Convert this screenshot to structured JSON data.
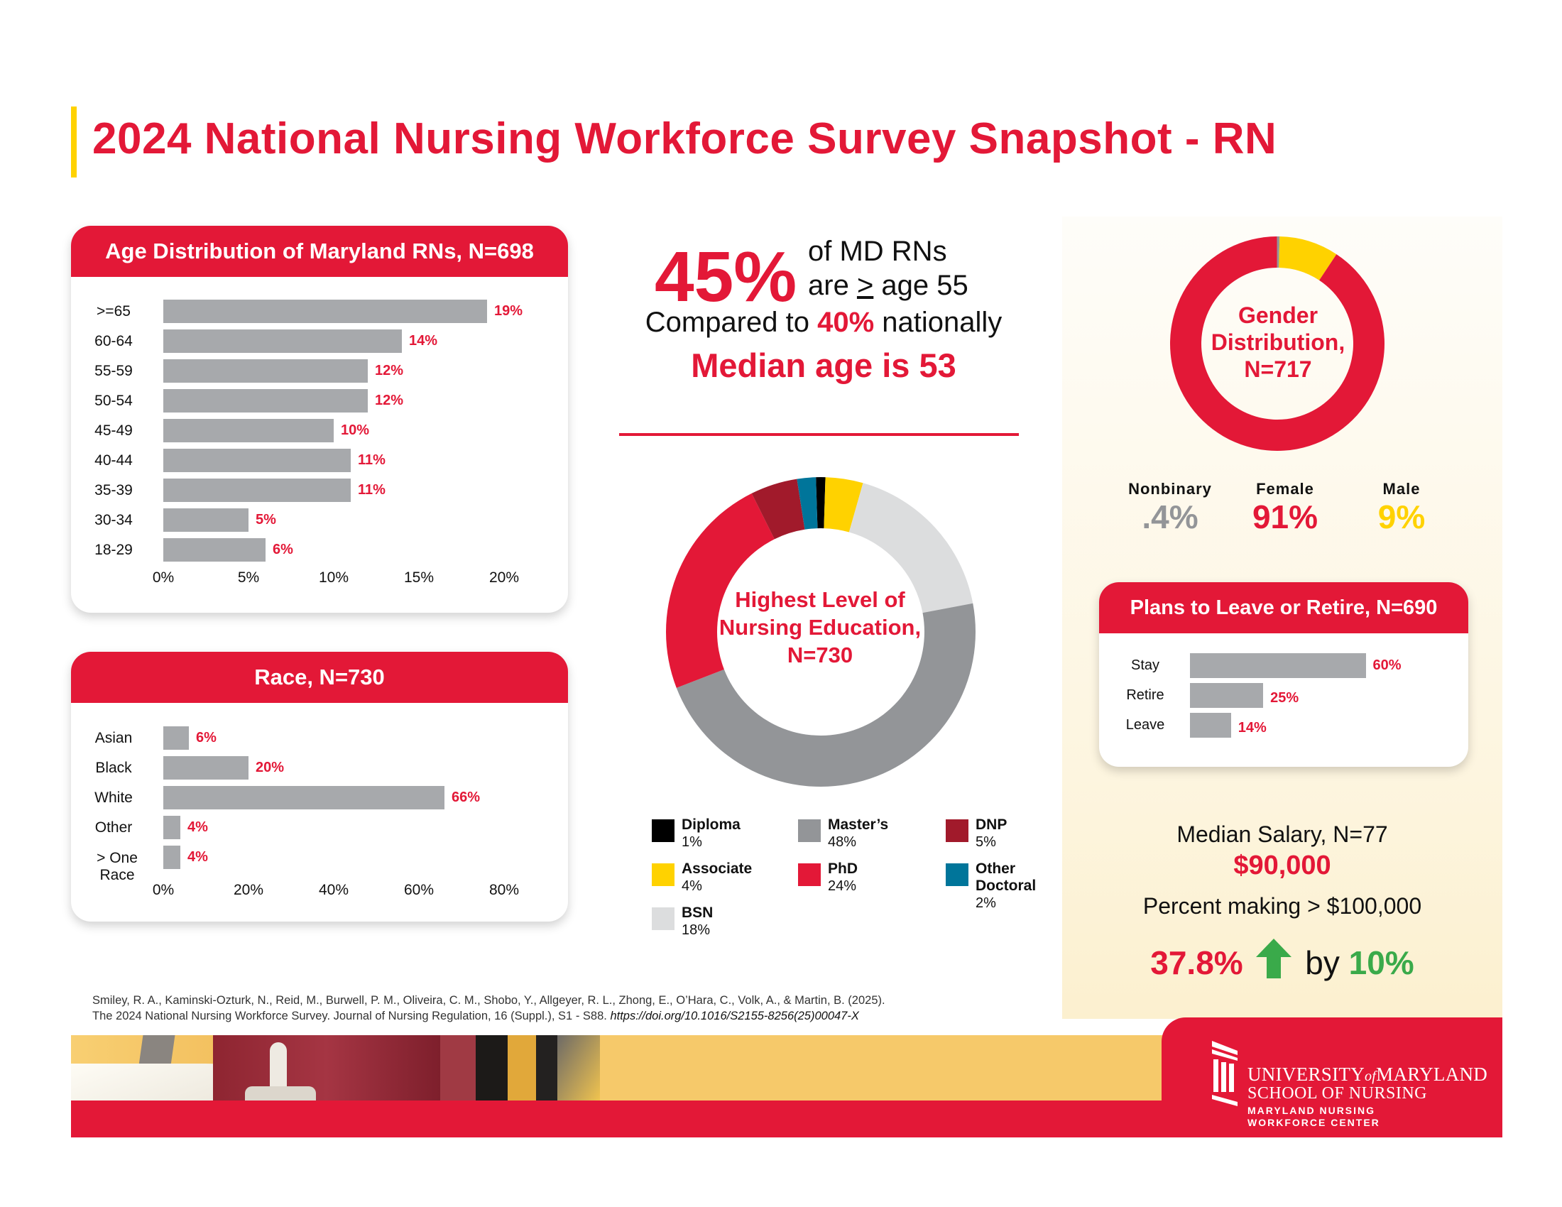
{
  "page_title": "2024 National Nursing Workforce Survey Snapshot - RN",
  "colors": {
    "brand_red": "#e31837",
    "accent_yellow": "#ffd200",
    "bar_gray": "#a7a9ac",
    "green": "#3aaa4a"
  },
  "headline": {
    "big_percent": "45%",
    "line1": "of MD RNs",
    "line2_prefix": "are ",
    "line2_symbol": ">",
    "line2_suffix": " age 55",
    "compared_prefix": "Compared to ",
    "compared_value": "40%",
    "compared_suffix": " nationally",
    "median_age": "Median age is 53"
  },
  "salary": {
    "title": "Median Salary, N=77",
    "value": "$90,000",
    "pct_title": "Percent making > $100,000",
    "pct_value": "37.8%",
    "by_label": "by",
    "change": "10%",
    "arrow_icon": "arrow-up"
  },
  "gender_labels": [
    {
      "label": "Nonbinary",
      "value": ".4%",
      "color": "#939598"
    },
    {
      "label": "Female",
      "value": "91%",
      "color": "#e31837"
    },
    {
      "label": "Male",
      "value": "9%",
      "color": "#ffd200"
    }
  ],
  "citation": {
    "line1": "Smiley, R. A., Kaminski-Ozturk, N., Reid, M., Burwell, P. M., Oliveira, C. M., Shobo, Y., Allgeyer, R. L., Zhong, E., O’Hara, C., Volk, A., & Martin, B. (2025).",
    "line2": "The 2024 National Nursing Workforce Survey. Journal of Nursing Regulation, 16 (Suppl.), S1 - S88. ",
    "doi": "https://doi.org/10.1016/S2155-8256(25)00047-X"
  },
  "logo": {
    "university_a": "UNIVERSITY",
    "university_of": "of",
    "university_b": "MARYLAND",
    "school": "SCHOOL OF NURSING",
    "center_line1": "MARYLAND NURSING",
    "center_line2": "WORKFORCE CENTER"
  },
  "chart_data": [
    {
      "id": "age",
      "type": "bar",
      "orientation": "horizontal",
      "title": "Age Distribution of Maryland RNs, N=698",
      "categories": [
        ">=65",
        "60-64",
        "55-59",
        "50-54",
        "45-49",
        "40-44",
        "35-39",
        "30-34",
        "18-29"
      ],
      "values": [
        19,
        14,
        12,
        12,
        10,
        11,
        11,
        5,
        6
      ],
      "value_labels": [
        "19%",
        "14%",
        "12%",
        "12%",
        "10%",
        "11%",
        "11%",
        "5%",
        "6%"
      ],
      "xlim": [
        0,
        20
      ],
      "xticks": [
        "0%",
        "5%",
        "10%",
        "15%",
        "20%"
      ],
      "grid": false
    },
    {
      "id": "race",
      "type": "bar",
      "orientation": "horizontal",
      "title": "Race, N=730",
      "categories": [
        "Asian",
        "Black",
        "White",
        "Other",
        "> One Race"
      ],
      "values": [
        6,
        20,
        66,
        4,
        4
      ],
      "value_labels": [
        "6%",
        "20%",
        "66%",
        "4%",
        "4%"
      ],
      "xlim": [
        0,
        80
      ],
      "xticks": [
        "0%",
        "20%",
        "40%",
        "60%",
        "80%"
      ],
      "grid": false
    },
    {
      "id": "education",
      "type": "pie",
      "donut": true,
      "title": "Highest Level of Nursing Education, N=730",
      "slices": [
        {
          "label": "Diploma",
          "value": 1,
          "display": "1%",
          "color": "#000000"
        },
        {
          "label": "Associate",
          "value": 4,
          "display": "4%",
          "color": "#ffd200"
        },
        {
          "label": "BSN",
          "value": 18,
          "display": "18%",
          "color": "#dcddde"
        },
        {
          "label": "Master’s",
          "value": 48,
          "display": "48%",
          "color": "#939598"
        },
        {
          "label": "PhD",
          "value": 24,
          "display": "24%",
          "color": "#e31837"
        },
        {
          "label": "DNP",
          "value": 5,
          "display": "5%",
          "color": "#a11a2b"
        },
        {
          "label": "Other Doctoral",
          "value": 2,
          "display": "2%",
          "color": "#00759a"
        }
      ],
      "legend_position": "bottom"
    },
    {
      "id": "gender",
      "type": "pie",
      "donut": true,
      "title": "Gender Distribution, N=717",
      "slices": [
        {
          "label": "Nonbinary",
          "value": 0.4,
          "display": ".4%",
          "color": "#939598"
        },
        {
          "label": "Male",
          "value": 9,
          "display": "9%",
          "color": "#ffd200"
        },
        {
          "label": "Female",
          "value": 91,
          "display": "91%",
          "color": "#e31837"
        }
      ],
      "legend_position": "bottom"
    },
    {
      "id": "plans",
      "type": "bar",
      "orientation": "horizontal",
      "title": "Plans to Leave or Retire, N=690",
      "categories": [
        "Stay",
        "Retire",
        "Leave"
      ],
      "values": [
        60,
        25,
        14
      ],
      "value_labels": [
        "60%",
        "25%",
        "14%"
      ],
      "xlim": [
        0,
        80
      ],
      "grid": false
    }
  ]
}
